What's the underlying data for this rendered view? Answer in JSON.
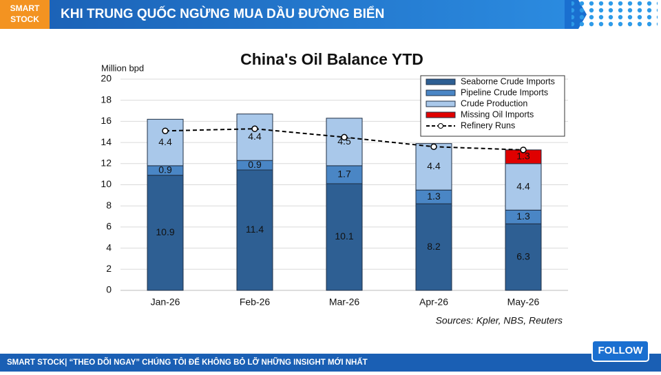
{
  "header": {
    "logo": [
      "SMART",
      "STOCK"
    ],
    "title": "KHI TRUNG QUỐC NGỪNG MUA DẦU ĐƯỜNG BIỂN"
  },
  "chart_data": {
    "type": "bar",
    "stacked": true,
    "title": "China's Oil Balance YTD",
    "y_label": "Million bpd",
    "categories": [
      "Jan-26",
      "Feb-26",
      "Mar-26",
      "Apr-26",
      "May-26"
    ],
    "series": [
      {
        "name": "Seaborne Crude Imports",
        "color": "#2e5f93",
        "values": [
          10.9,
          11.4,
          10.1,
          8.2,
          6.3
        ]
      },
      {
        "name": "Pipeline Crude Imports",
        "color": "#4a86c5",
        "values": [
          0.9,
          0.9,
          1.7,
          1.3,
          1.3
        ]
      },
      {
        "name": "Crude Production",
        "color": "#a9c8ea",
        "values": [
          4.4,
          4.4,
          4.5,
          4.4,
          4.4
        ]
      },
      {
        "name": "Missing Oil Imports",
        "color": "#e00000",
        "values": [
          null,
          null,
          null,
          null,
          1.3
        ]
      },
      {
        "name": "Refinery Runs",
        "color": "#000000",
        "type": "line",
        "values": [
          15.1,
          15.3,
          14.5,
          13.6,
          13.3
        ]
      }
    ],
    "ylim": [
      0,
      20
    ],
    "yticks": [
      0,
      2,
      4,
      6,
      8,
      10,
      12,
      14,
      16,
      18,
      20
    ],
    "grid": true,
    "legend": "top-right",
    "source": "Sources: Kpler, NBS, Reuters"
  },
  "footer": {
    "text": "SMART STOCK| “THEO DÕI NGAY” CHÚNG TÔI ĐỂ KHÔNG BỎ LỠ NHỮNG INSIGHT MỚI NHẤT"
  },
  "follow_button": "FOLLOW"
}
